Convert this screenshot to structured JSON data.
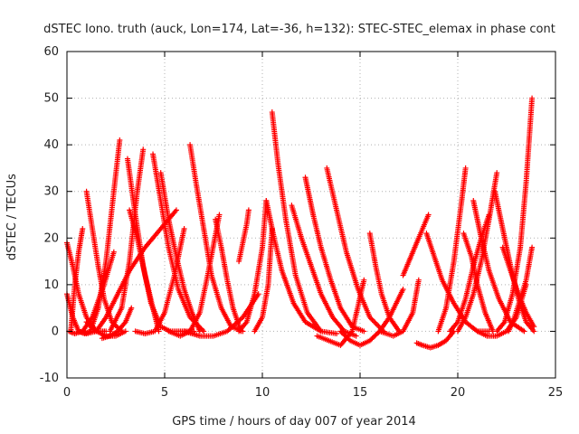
{
  "chart_data": {
    "type": "scatter",
    "title": "dSTEC Iono. truth (auck, Lon=174, Lat=-36, h=132): STEC-STEC_elemax in phase cont",
    "xlabel": "GPS time / hours of day 007 of year 2014",
    "ylabel": "dSTEC  / TECUs",
    "xlim": [
      0,
      25
    ],
    "ylim": [
      -10,
      60
    ],
    "xticks": [
      0,
      5,
      10,
      15,
      20,
      25
    ],
    "yticks": [
      -10,
      0,
      10,
      20,
      30,
      40,
      50,
      60
    ],
    "grid": true,
    "legend": "none",
    "marker": "plus",
    "color": "#ff0000",
    "series": [
      {
        "x": [
          0.0,
          0.3,
          0.6,
          1.0,
          1.5,
          2.0
        ],
        "y": [
          19,
          14,
          8,
          3,
          0,
          0
        ]
      },
      {
        "x": [
          0.0,
          0.3,
          0.6,
          0.9,
          1.2
        ],
        "y": [
          8,
          3,
          0,
          -0.5,
          0
        ]
      },
      {
        "x": [
          0.1,
          0.4,
          0.8,
          1.3,
          1.9,
          2.4
        ],
        "y": [
          0,
          -0.5,
          0,
          3,
          10,
          17
        ]
      },
      {
        "x": [
          0.2,
          0.4,
          0.6,
          0.8
        ],
        "y": [
          0,
          10,
          17,
          22
        ]
      },
      {
        "x": [
          0.6,
          1.0,
          1.5,
          2.0,
          2.6,
          3.2,
          4.0,
          4.8,
          5.6
        ],
        "y": [
          0,
          -0.5,
          0,
          3,
          8,
          13,
          18,
          22,
          26
        ]
      },
      {
        "x": [
          1.0,
          1.3,
          1.6,
          1.9,
          2.3,
          2.8
        ],
        "y": [
          30,
          22,
          14,
          7,
          2,
          0
        ]
      },
      {
        "x": [
          1.2,
          1.6,
          2.0,
          2.4,
          2.7
        ],
        "y": [
          0,
          5,
          15,
          30,
          41
        ]
      },
      {
        "x": [
          1.0,
          1.5,
          2.0,
          2.5,
          3.0
        ],
        "y": [
          2,
          0,
          -1,
          -1,
          0
        ]
      },
      {
        "x": [
          1.8,
          2.2,
          2.6,
          3.0,
          3.3
        ],
        "y": [
          -1.5,
          -1,
          0,
          2,
          5
        ]
      },
      {
        "x": [
          3.1,
          3.5,
          3.9,
          4.3,
          4.8,
          5.3,
          5.9,
          6.5
        ],
        "y": [
          37,
          25,
          14,
          6,
          1,
          0,
          0,
          0
        ]
      },
      {
        "x": [
          3.2,
          3.6,
          4.0,
          4.4,
          4.7
        ],
        "y": [
          26,
          20,
          12,
          5,
          0
        ]
      },
      {
        "x": [
          2.2,
          2.8,
          3.2,
          3.6,
          3.9
        ],
        "y": [
          0,
          5,
          15,
          30,
          39
        ]
      },
      {
        "x": [
          4.4,
          4.8,
          5.2,
          5.7,
          6.3,
          7.0
        ],
        "y": [
          38,
          28,
          18,
          9,
          3,
          0
        ]
      },
      {
        "x": [
          4.8,
          5.2,
          5.6,
          6.0,
          6.4,
          6.8
        ],
        "y": [
          34,
          24,
          16,
          9,
          4,
          0
        ]
      },
      {
        "x": [
          3.5,
          4.0,
          4.5,
          5.0,
          5.5,
          6.0
        ],
        "y": [
          0,
          -0.5,
          0,
          4,
          12,
          22
        ]
      },
      {
        "x": [
          5.2,
          5.8,
          6.3,
          6.8,
          7.2,
          7.8
        ],
        "y": [
          0,
          -1,
          0,
          4,
          12,
          25
        ]
      },
      {
        "x": [
          6.3,
          6.6,
          7.0,
          7.4,
          7.9,
          8.4,
          9.0
        ],
        "y": [
          40,
          32,
          22,
          12,
          5,
          1,
          0
        ]
      },
      {
        "x": [
          6.0,
          6.8,
          7.5,
          8.2,
          9.0,
          9.8
        ],
        "y": [
          0,
          -1,
          -1,
          0,
          3,
          8
        ]
      },
      {
        "x": [
          7.6,
          7.9,
          8.2,
          8.5,
          8.9
        ],
        "y": [
          24,
          18,
          11,
          5,
          0
        ]
      },
      {
        "x": [
          8.8,
          9.2,
          9.6,
          10.0,
          10.2
        ],
        "y": [
          0,
          2,
          8,
          18,
          28
        ]
      },
      {
        "x": [
          8.8,
          9.0,
          9.2,
          9.3
        ],
        "y": [
          15,
          19,
          23,
          26
        ]
      },
      {
        "x": [
          9.6,
          10.0,
          10.3,
          10.5
        ],
        "y": [
          0,
          3,
          10,
          22
        ]
      },
      {
        "x": [
          10.5,
          10.8,
          11.2,
          11.7,
          12.3,
          13.0
        ],
        "y": [
          47,
          36,
          24,
          12,
          4,
          0
        ]
      },
      {
        "x": [
          10.2,
          10.6,
          11.0,
          11.6,
          12.2,
          13.0,
          13.8
        ],
        "y": [
          28,
          20,
          13,
          6,
          2,
          0,
          -0.5
        ]
      },
      {
        "x": [
          11.5,
          12.0,
          12.5,
          13.0,
          13.6,
          14.2,
          14.8
        ],
        "y": [
          27,
          20,
          14,
          8,
          3,
          0,
          -1
        ]
      },
      {
        "x": [
          12.2,
          12.6,
          13.0,
          13.5,
          14.0,
          14.6,
          15.2
        ],
        "y": [
          33,
          25,
          18,
          11,
          5,
          1,
          0
        ]
      },
      {
        "x": [
          13.3,
          13.8,
          14.3,
          14.9,
          15.5,
          16.2
        ],
        "y": [
          35,
          26,
          17,
          9,
          3,
          0
        ]
      },
      {
        "x": [
          12.8,
          13.4,
          14.0,
          14.6,
          15.2
        ],
        "y": [
          -1,
          -2,
          -3,
          0,
          11
        ]
      },
      {
        "x": [
          14.0,
          14.5,
          15.0,
          15.5,
          16.0,
          16.5,
          17.2
        ],
        "y": [
          0,
          -2,
          -3,
          -2,
          0,
          3,
          9
        ]
      },
      {
        "x": [
          15.5,
          15.8,
          16.1,
          16.5,
          17.0
        ],
        "y": [
          21,
          14,
          8,
          3,
          0
        ]
      },
      {
        "x": [
          16.0,
          16.7,
          17.2,
          17.7,
          18.0
        ],
        "y": [
          0,
          -1,
          0,
          4,
          11
        ]
      },
      {
        "x": [
          17.2,
          17.6,
          18.0,
          18.5
        ],
        "y": [
          12,
          16,
          20,
          25
        ]
      },
      {
        "x": [
          18.4,
          18.8,
          19.2,
          19.8,
          20.4,
          21.0,
          21.6
        ],
        "y": [
          21,
          16,
          11,
          6,
          2,
          0,
          0
        ]
      },
      {
        "x": [
          17.9,
          18.2,
          18.6,
          19.0,
          19.4,
          19.8
        ],
        "y": [
          -2.5,
          -3,
          -3.5,
          -3,
          -2,
          0
        ]
      },
      {
        "x": [
          19.0,
          19.4,
          19.8,
          20.2,
          20.4
        ],
        "y": [
          0,
          5,
          15,
          28,
          35
        ]
      },
      {
        "x": [
          19.6,
          20.0,
          20.4,
          20.8,
          21.2,
          21.6
        ],
        "y": [
          0,
          2,
          7,
          14,
          20,
          25
        ]
      },
      {
        "x": [
          20.0,
          20.4,
          20.8,
          21.2,
          21.6,
          22.0
        ],
        "y": [
          0,
          3,
          8,
          15,
          24,
          34
        ]
      },
      {
        "x": [
          20.8,
          21.2,
          21.6,
          22.1,
          22.7,
          23.4
        ],
        "y": [
          28,
          20,
          13,
          7,
          2,
          0
        ]
      },
      {
        "x": [
          20.3,
          20.7,
          21.0,
          21.4,
          21.8
        ],
        "y": [
          21,
          16,
          10,
          4,
          0
        ]
      },
      {
        "x": [
          21.0,
          21.5,
          22.0,
          22.5,
          23.0,
          23.5
        ],
        "y": [
          0,
          -1,
          -1,
          0,
          3,
          10
        ]
      },
      {
        "x": [
          21.9,
          22.3,
          22.7,
          23.1,
          23.5,
          23.9
        ],
        "y": [
          30,
          22,
          14,
          7,
          2,
          0
        ]
      },
      {
        "x": [
          22.0,
          22.4,
          22.8,
          23.2,
          23.5,
          23.8
        ],
        "y": [
          0,
          2,
          8,
          18,
          32,
          50
        ]
      },
      {
        "x": [
          22.6,
          22.9,
          23.2,
          23.5,
          23.8
        ],
        "y": [
          0,
          3,
          7,
          11,
          18
        ]
      },
      {
        "x": [
          22.3,
          22.7,
          23.1,
          23.5,
          23.9
        ],
        "y": [
          18,
          13,
          8,
          4,
          1
        ]
      }
    ]
  }
}
